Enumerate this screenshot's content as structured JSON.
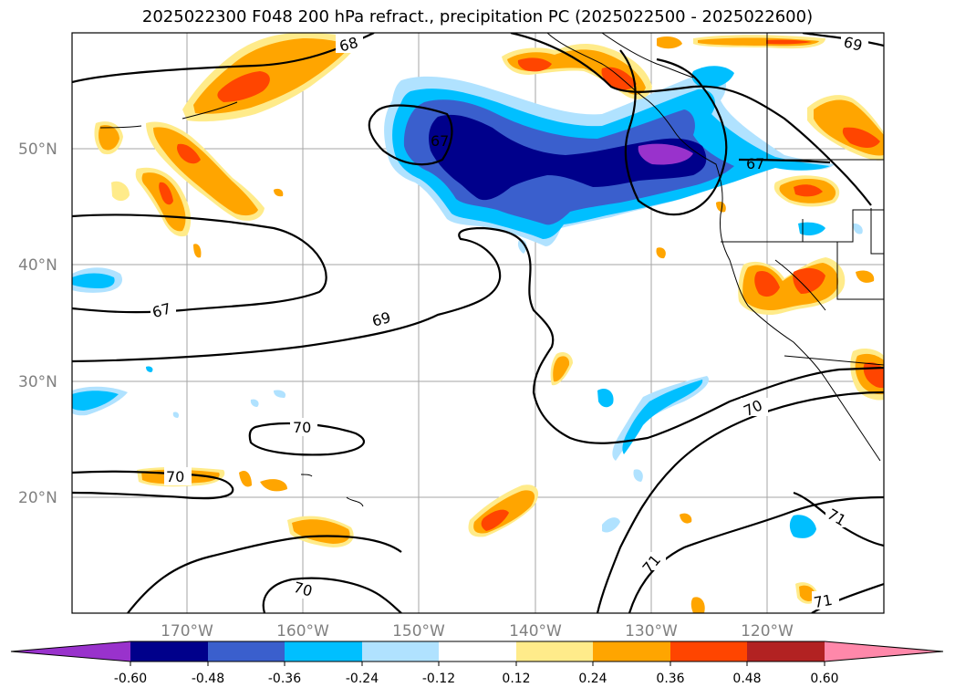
{
  "title": "2025022300 F048 200 hPa refract., precipitation PC (2025022500 - 2025022600)",
  "lat_labels": [
    "50°N",
    "40°N",
    "30°N",
    "20°N"
  ],
  "lon_labels": [
    "170°W",
    "160°W",
    "150°W",
    "140°W",
    "130°W",
    "120°W"
  ],
  "contour_labels": [
    "68",
    "69",
    "67",
    "67",
    "69",
    "70",
    "70",
    "70",
    "70",
    "71",
    "71",
    "71"
  ],
  "colorbar": {
    "ticks": [
      "-0.60",
      "-0.48",
      "-0.36",
      "-0.24",
      "-0.12",
      "0.12",
      "0.24",
      "0.36",
      "0.48",
      "0.60"
    ],
    "colors": [
      "#9932cc",
      "#00008b",
      "#3a5fcd",
      "#00bfff",
      "#b0e2ff",
      "#ffffff",
      "#ffeb8a",
      "#ffa500",
      "#ff4500",
      "#b22222",
      "#ff88aa"
    ]
  }
}
